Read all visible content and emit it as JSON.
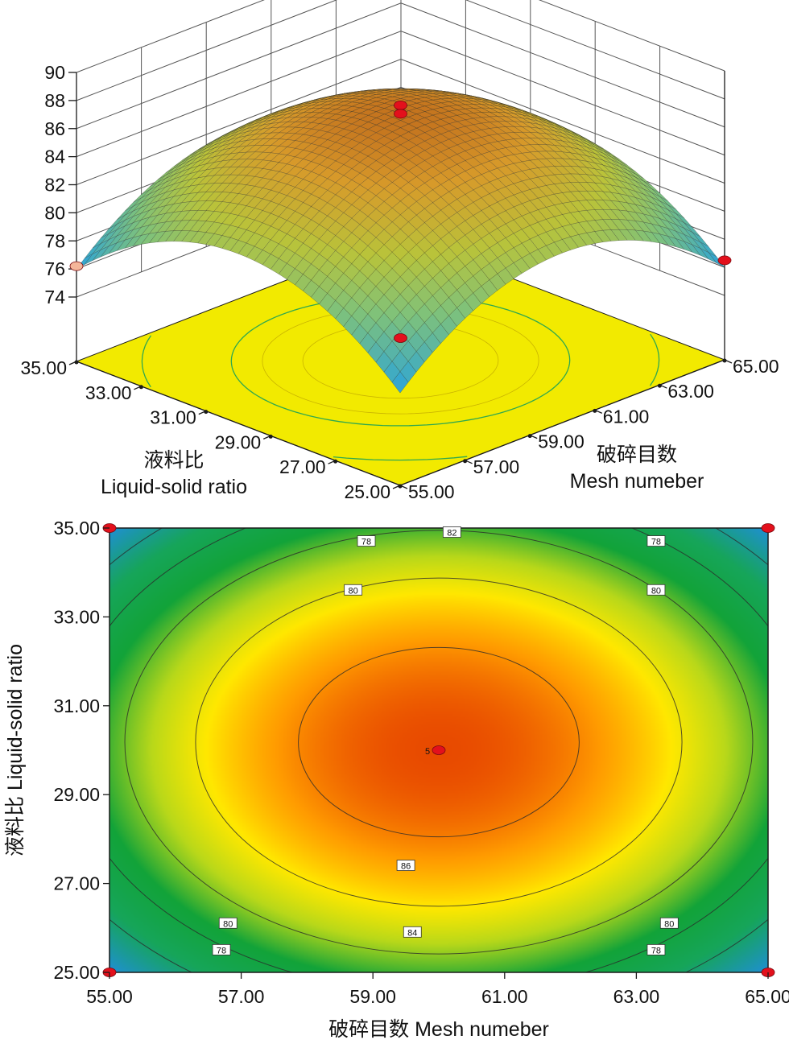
{
  "colors": {
    "axis": "#1a1a1a",
    "grid": "#555555",
    "floor": "#f2ea00",
    "floor_contour": "#2fa84f",
    "design_point": "#e3101c",
    "design_point_low": "#f4b69a",
    "surface_low": "#2ba6d9",
    "surface_mid": "#9fc24a",
    "surface_high": "#d88a2c",
    "contour_low": "#1f8fd6",
    "contour_mid": "#12a339",
    "contour_high1": "#ffe800",
    "contour_high2": "#ff9a00",
    "contour_peak": "#e84a00"
  },
  "chart_data": [
    {
      "type": "surface",
      "view": "3d response surface with contour projection on floor",
      "model": "center 60.00 / 30.00, peak 87.0 at center, 76.0 at corners",
      "z_axis": {
        "range": [
          74,
          90
        ],
        "ticks": [
          "74",
          "76",
          "78",
          "80",
          "82",
          "84",
          "86",
          "88",
          "90"
        ]
      },
      "x_axis": {
        "label_cn": "破碎目数",
        "label_en": "Mesh numeber",
        "range": [
          55,
          65
        ],
        "ticks": [
          "55.00",
          "57.00",
          "59.00",
          "61.00",
          "63.00",
          "65.00"
        ]
      },
      "y_axis": {
        "label_cn": "液料比",
        "label_en": "Liquid-solid ratio",
        "range": [
          25,
          35
        ],
        "ticks": [
          "25.00",
          "27.00",
          "29.00",
          "31.00",
          "33.00",
          "35.00"
        ]
      },
      "design_points": [
        {
          "x": 60,
          "y": 30,
          "z": 87.6
        },
        {
          "x": 60,
          "y": 30,
          "z": 87.0
        },
        {
          "x": 55,
          "y": 35,
          "z": 76.2
        },
        {
          "x": 65,
          "y": 25,
          "z": 76.5
        }
      ]
    },
    {
      "type": "contour",
      "x_axis": {
        "label": "破碎目数 Mesh numeber",
        "range": [
          55,
          65
        ],
        "ticks": [
          "55.00",
          "57.00",
          "59.00",
          "61.00",
          "63.00",
          "65.00"
        ]
      },
      "y_axis": {
        "label": "液料比 Liquid-solid ratio",
        "range": [
          25,
          35
        ],
        "ticks": [
          "25.00",
          "27.00",
          "29.00",
          "31.00",
          "33.00",
          "35.00"
        ]
      },
      "contour_levels": [
        {
          "level": 78,
          "labels": [
            {
              "label": "78",
              "x": 58.9,
              "y": 34.7
            },
            {
              "label": "78",
              "x": 63.3,
              "y": 34.7
            },
            {
              "label": "78",
              "x": 56.7,
              "y": 25.5
            },
            {
              "label": "78",
              "x": 63.3,
              "y": 25.5
            }
          ]
        },
        {
          "level": 80,
          "labels": [
            {
              "label": "80",
              "x": 58.7,
              "y": 33.6
            },
            {
              "label": "80",
              "x": 63.3,
              "y": 33.6
            },
            {
              "label": "80",
              "x": 56.8,
              "y": 26.1
            },
            {
              "label": "80",
              "x": 63.5,
              "y": 26.1
            }
          ]
        },
        {
          "level": 82,
          "labels": [
            {
              "label": "82",
              "x": 60.2,
              "y": 34.9
            }
          ]
        },
        {
          "level": 84,
          "labels": [
            {
              "label": "84",
              "x": 59.6,
              "y": 25.9
            }
          ]
        },
        {
          "level": 86,
          "labels": [
            {
              "label": "86",
              "x": 59.5,
              "y": 27.4
            }
          ]
        }
      ],
      "center_label": "5",
      "design_points": [
        {
          "x": 60,
          "y": 30
        },
        {
          "x": 55,
          "y": 35
        },
        {
          "x": 65,
          "y": 35
        },
        {
          "x": 55,
          "y": 25
        },
        {
          "x": 65,
          "y": 25
        }
      ]
    }
  ]
}
